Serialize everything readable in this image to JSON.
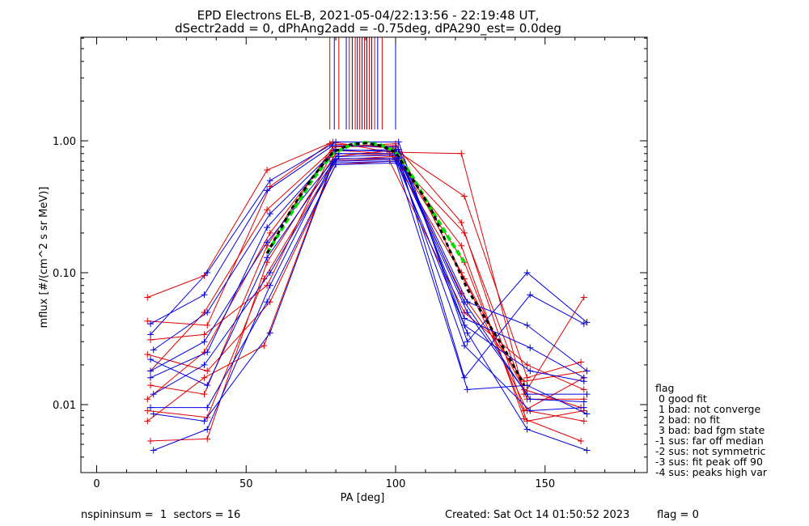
{
  "chart_data": {
    "type": "line",
    "title": "EPD Electrons EL-B, 2021-05-04/22:13:56 - 22:19:48 UT,",
    "subtitle": "dSectr2add = 0, dPhAng2add = -0.75deg, dPA290_est=   0.0deg",
    "xlabel": "PA [deg]",
    "ylabel": "mflux [#/(cm^2 s sr MeV)]",
    "xlim": [
      0,
      185
    ],
    "ylim": [
      0.003,
      6.0
    ],
    "yscale": "log",
    "grid": false,
    "xticks": [
      0,
      50,
      100,
      150
    ],
    "xtick_labels": [
      "0",
      "50",
      "100",
      "150"
    ],
    "yticks": [
      0.01,
      0.1,
      1.0
    ],
    "ytick_labels": [
      "0.01",
      "0.10",
      "1.00"
    ],
    "colors": {
      "red": "#e00000",
      "blue": "#0000e0",
      "fit_green": "#00dd00",
      "fit_black": "#000000"
    },
    "series": [
      {
        "color": "red",
        "x": [
          17,
          36,
          57,
          79,
          98,
          122,
          143,
          163
        ],
        "y": [
          0.065,
          0.095,
          0.6,
          0.98,
          0.82,
          0.8,
          0.012,
          0.065
        ]
      },
      {
        "color": "red",
        "x": [
          17,
          37,
          58,
          78,
          99,
          123,
          144,
          162
        ],
        "y": [
          0.043,
          0.04,
          0.45,
          0.95,
          0.88,
          0.38,
          0.016,
          0.021
        ]
      },
      {
        "color": "red",
        "x": [
          18,
          36,
          57,
          80,
          100,
          122,
          143,
          163
        ],
        "y": [
          0.018,
          0.05,
          0.3,
          0.9,
          0.92,
          0.24,
          0.009,
          0.016
        ]
      },
      {
        "color": "red",
        "x": [
          17,
          36,
          58,
          79,
          98,
          123,
          144,
          163
        ],
        "y": [
          0.011,
          0.025,
          0.2,
          0.85,
          0.8,
          0.2,
          0.011,
          0.011
        ]
      },
      {
        "color": "red",
        "x": [
          18,
          37,
          57,
          80,
          99,
          122,
          143,
          162
        ],
        "y": [
          0.0053,
          0.0055,
          0.12,
          0.8,
          0.78,
          0.16,
          0.0078,
          0.0053
        ]
      },
      {
        "color": "red",
        "x": [
          17,
          36,
          56,
          79,
          100,
          123,
          144,
          163
        ],
        "y": [
          0.0075,
          0.016,
          0.028,
          0.7,
          0.74,
          0.12,
          0.0075,
          0.009
        ]
      },
      {
        "color": "red",
        "x": [
          18,
          36,
          57,
          78,
          99,
          122,
          143,
          164
        ],
        "y": [
          0.031,
          0.034,
          0.08,
          0.75,
          0.85,
          0.07,
          0.015,
          0.018
        ]
      },
      {
        "color": "red",
        "x": [
          17,
          37,
          58,
          80,
          98,
          123,
          144,
          163
        ],
        "y": [
          0.024,
          0.018,
          0.06,
          0.66,
          0.7,
          0.05,
          0.02,
          0.013
        ]
      },
      {
        "color": "red",
        "x": [
          18,
          36,
          57,
          79,
          100,
          122,
          143,
          162
        ],
        "y": [
          0.014,
          0.012,
          0.16,
          0.9,
          0.95,
          0.1,
          0.013,
          0.0095
        ]
      },
      {
        "color": "red",
        "x": [
          17,
          37,
          56,
          80,
          99,
          123,
          144,
          163
        ],
        "y": [
          0.009,
          0.008,
          0.09,
          0.72,
          0.76,
          0.09,
          0.009,
          0.0075
        ]
      },
      {
        "color": "blue",
        "x": [
          18,
          37,
          58,
          80,
          101,
          124,
          144,
          164
        ],
        "y": [
          0.034,
          0.1,
          0.5,
          0.98,
          0.98,
          0.03,
          0.1,
          0.042
        ]
      },
      {
        "color": "blue",
        "x": [
          18,
          36,
          57,
          79,
          100,
          123,
          145,
          163
        ],
        "y": [
          0.041,
          0.068,
          0.42,
          0.92,
          0.9,
          0.016,
          0.068,
          0.041
        ]
      },
      {
        "color": "blue",
        "x": [
          19,
          37,
          58,
          80,
          100,
          124,
          144,
          164
        ],
        "y": [
          0.026,
          0.05,
          0.28,
          0.86,
          0.83,
          0.06,
          0.04,
          0.018
        ]
      },
      {
        "color": "blue",
        "x": [
          18,
          36,
          57,
          81,
          101,
          123,
          145,
          163
        ],
        "y": [
          0.018,
          0.03,
          0.17,
          0.8,
          0.8,
          0.045,
          0.027,
          0.016
        ]
      },
      {
        "color": "blue",
        "x": [
          19,
          37,
          58,
          79,
          100,
          124,
          144,
          164
        ],
        "y": [
          0.0045,
          0.0065,
          0.08,
          0.7,
          0.72,
          0.035,
          0.0065,
          0.0045
        ]
      },
      {
        "color": "blue",
        "x": [
          18,
          37,
          57,
          80,
          101,
          123,
          145,
          163
        ],
        "y": [
          0.0095,
          0.0095,
          0.06,
          0.66,
          0.68,
          0.028,
          0.009,
          0.0095
        ]
      },
      {
        "color": "blue",
        "x": [
          19,
          36,
          58,
          81,
          100,
          124,
          144,
          164
        ],
        "y": [
          0.012,
          0.02,
          0.1,
          0.76,
          0.78,
          0.05,
          0.012,
          0.012
        ]
      },
      {
        "color": "blue",
        "x": [
          18,
          37,
          57,
          80,
          101,
          123,
          145,
          163
        ],
        "y": [
          0.022,
          0.014,
          0.13,
          0.73,
          0.74,
          0.06,
          0.011,
          0.0105
        ]
      },
      {
        "color": "blue",
        "x": [
          19,
          36,
          58,
          79,
          100,
          124,
          144,
          164
        ],
        "y": [
          0.0085,
          0.0075,
          0.035,
          0.68,
          0.7,
          0.013,
          0.014,
          0.0085
        ]
      },
      {
        "color": "blue",
        "x": [
          18,
          37,
          57,
          80,
          101,
          123,
          145,
          163
        ],
        "y": [
          0.016,
          0.025,
          0.22,
          0.84,
          0.86,
          0.04,
          0.018,
          0.015
        ]
      }
    ],
    "fits": [
      {
        "color": "fit_green",
        "x": [
          57,
          65,
          72,
          79,
          85,
          90,
          95,
          100,
          106,
          112,
          118,
          123
        ],
        "y": [
          0.14,
          0.28,
          0.5,
          0.8,
          0.93,
          0.97,
          0.93,
          0.83,
          0.52,
          0.3,
          0.18,
          0.12
        ]
      },
      {
        "color": "fit_black",
        "x": [
          57,
          65,
          72,
          79,
          85,
          90,
          95,
          100,
          106,
          112,
          118,
          124,
          130,
          137,
          143
        ],
        "y": [
          0.14,
          0.3,
          0.52,
          0.82,
          0.94,
          0.96,
          0.92,
          0.82,
          0.5,
          0.3,
          0.15,
          0.075,
          0.045,
          0.025,
          0.014
        ]
      }
    ],
    "vlines": [
      {
        "x": 78.0,
        "color": "red"
      },
      {
        "x": 79.5,
        "color": "blue"
      },
      {
        "x": 81.0,
        "color": "red"
      },
      {
        "x": 83.5,
        "color": "blue"
      },
      {
        "x": 84.5,
        "color": "red"
      },
      {
        "x": 85.5,
        "color": "blue"
      },
      {
        "x": 86.5,
        "color": "red"
      },
      {
        "x": 87.2,
        "color": "blue"
      },
      {
        "x": 88.0,
        "color": "red"
      },
      {
        "x": 88.8,
        "color": "blue"
      },
      {
        "x": 89.6,
        "color": "red"
      },
      {
        "x": 90.4,
        "color": "blue"
      },
      {
        "x": 91.2,
        "color": "red"
      },
      {
        "x": 92.0,
        "color": "blue"
      },
      {
        "x": 93.0,
        "color": "red"
      },
      {
        "x": 94.0,
        "color": "blue"
      },
      {
        "x": 95.5,
        "color": "red"
      },
      {
        "x": 100.0,
        "color": "blue"
      }
    ]
  },
  "legend": {
    "heading": "flag",
    "items": [
      " 0 good fit",
      " 1 bad: not converge",
      " 2 bad: no fit",
      " 3 bad: bad fgm state",
      "-1 sus: far off median",
      "-2 sus: not symmetric",
      "-3 sus: fit peak off 90",
      "-4 sus: peaks high var"
    ]
  },
  "footer": {
    "left": "nspininsum =  1  sectors = 16",
    "center": "Created: Sat Oct 14 01:50:52 2023",
    "right": "flag = 0"
  }
}
